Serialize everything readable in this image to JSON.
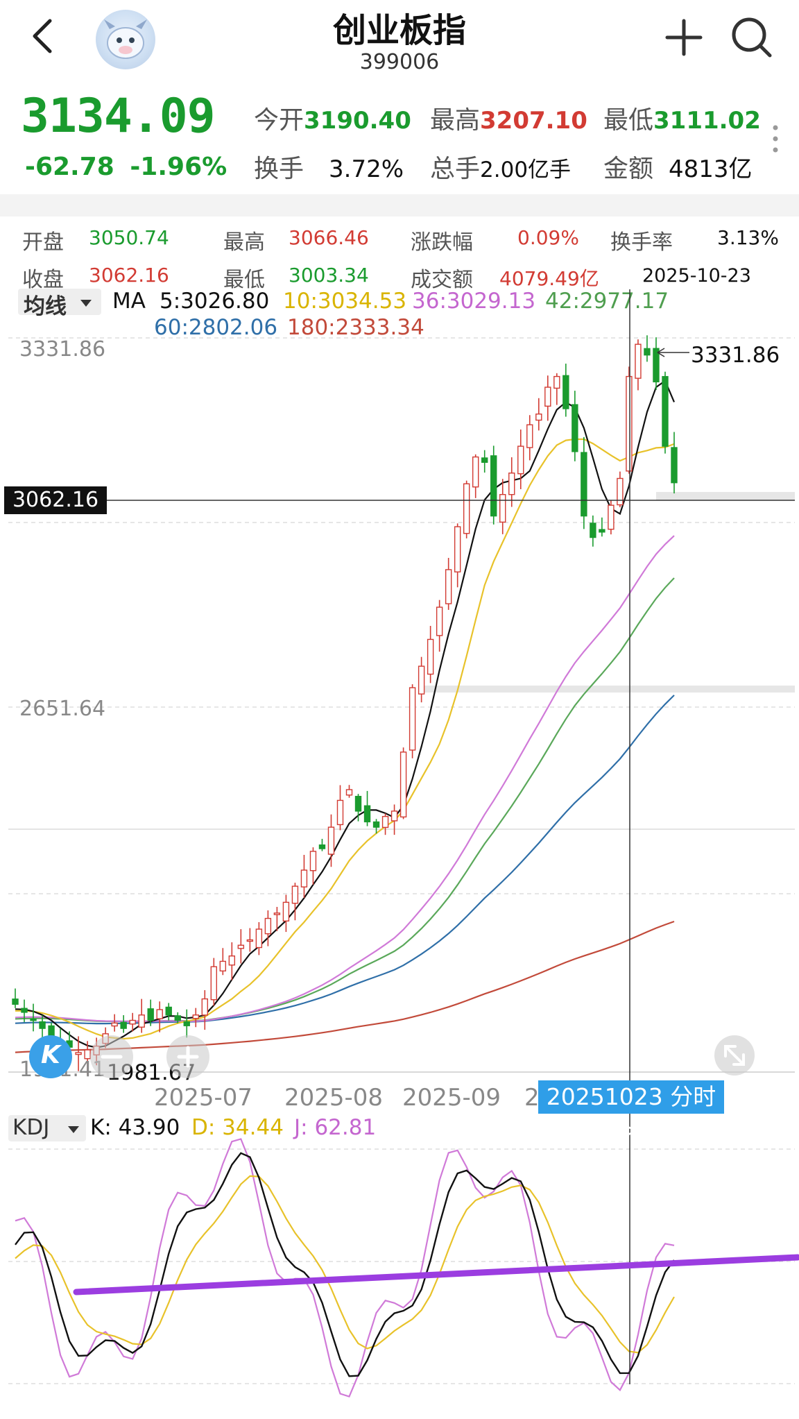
{
  "header": {
    "title": "创业板指",
    "code": "399006"
  },
  "quote": {
    "price": "3134.09",
    "change": "-62.78",
    "change_pct": "-1.96%",
    "open_label": "今开",
    "open": "3190.40",
    "high_label": "最高",
    "high": "3207.10",
    "low_label": "最低",
    "low": "3111.02",
    "turnover_label": "换手",
    "turnover": "3.72%",
    "volume_label": "总手",
    "volume": "2.00亿手",
    "amount_label": "金额",
    "amount": "4813亿"
  },
  "day_info": {
    "open_label": "开盘",
    "open": "3050.74",
    "high_label": "最高",
    "high": "3066.46",
    "chg_label": "涨跌幅",
    "chg": "0.09%",
    "turn_label": "换手率",
    "turn": "3.13%",
    "close_label": "收盘",
    "close": "3062.16",
    "low_label": "最低",
    "low": "3003.34",
    "amount_label": "成交额",
    "amount": "4079.49亿",
    "date": "2025-10-23"
  },
  "ma_legend": {
    "selector": "均线",
    "ma_label": "MA",
    "ma5": "5:3026.80",
    "ma10": "10:3034.53",
    "ma36": "36:3029.13",
    "ma42": "42:2977.17",
    "ma60": "60:2802.06",
    "ma180": "180:2333.34"
  },
  "price_axis": {
    "top": "3331.86",
    "mid": "2651.64",
    "bottom": "1971.41",
    "max_mark": "3331.86",
    "min_mark": "1981.67",
    "crosshair_value": "3062.16"
  },
  "date_axis": [
    "2025-07",
    "2025-08",
    "2025-09",
    "2"
  ],
  "fenshi_button": "20251023 分时 >",
  "kdj_legend": {
    "selector": "KDJ",
    "k": "K: 43.90",
    "d": "D: 34.44",
    "j": "J: 62.81"
  },
  "k_icon": "K",
  "colors": {
    "up": "#d23b33",
    "down": "#1a9b2e",
    "ma5": "#111111",
    "ma10": "#e8c22a",
    "ma36": "#d07ad8",
    "ma42": "#5aa85a",
    "ma60": "#2f6fa8",
    "ma180": "#c24a3a",
    "kdj_k": "#111111",
    "kdj_d": "#e8c22a",
    "kdj_j": "#d07ad8",
    "trendline": "#9b3de0"
  },
  "icons": [
    "back-chevron-icon",
    "mascot-avatar-icon",
    "plus-icon",
    "search-icon",
    "more-dots-icon",
    "zoom-out-icon",
    "zoom-in-icon",
    "fullscreen-icon"
  ],
  "chart_data": {
    "type": "candlestick",
    "title": "",
    "x_ticks": [
      "2025-07",
      "2025-08",
      "2025-09",
      "2025-10"
    ],
    "ylim": [
      1971.41,
      3331.86
    ],
    "y_ticks": [
      3331.86,
      2651.64,
      1971.41
    ],
    "highlight": {
      "date": "2025-10-23",
      "close": 3062.16
    },
    "ma": {
      "ma5": 3026.8,
      "ma10": 3034.53,
      "ma36": 3029.13,
      "ma42": 2977.17,
      "ma60": 2802.06,
      "ma180": 2333.34
    },
    "close": [
      2090,
      2075,
      2060,
      2045,
      2030,
      2020,
      2010,
      2000,
      2005,
      2012,
      2035,
      2055,
      2045,
      2060,
      2070,
      2060,
      2080,
      2070,
      2060,
      2050,
      2070,
      2100,
      2160,
      2170,
      2180,
      2200,
      2210,
      2230,
      2250,
      2260,
      2280,
      2310,
      2340,
      2375,
      2380,
      2420,
      2470,
      2490,
      2450,
      2430,
      2420,
      2440,
      2450,
      2560,
      2680,
      2720,
      2770,
      2830,
      2900,
      2980,
      3060,
      3110,
      3100,
      3000,
      3040,
      3080,
      3130,
      3170,
      3190,
      3240,
      3260,
      3200,
      3120,
      3000,
      2960,
      2970,
      3020,
      3070,
      3260,
      3320,
      3300,
      3250,
      3130,
      3062
    ],
    "kdj": {
      "k": 43.9,
      "d": 34.44,
      "j": 62.81
    }
  }
}
